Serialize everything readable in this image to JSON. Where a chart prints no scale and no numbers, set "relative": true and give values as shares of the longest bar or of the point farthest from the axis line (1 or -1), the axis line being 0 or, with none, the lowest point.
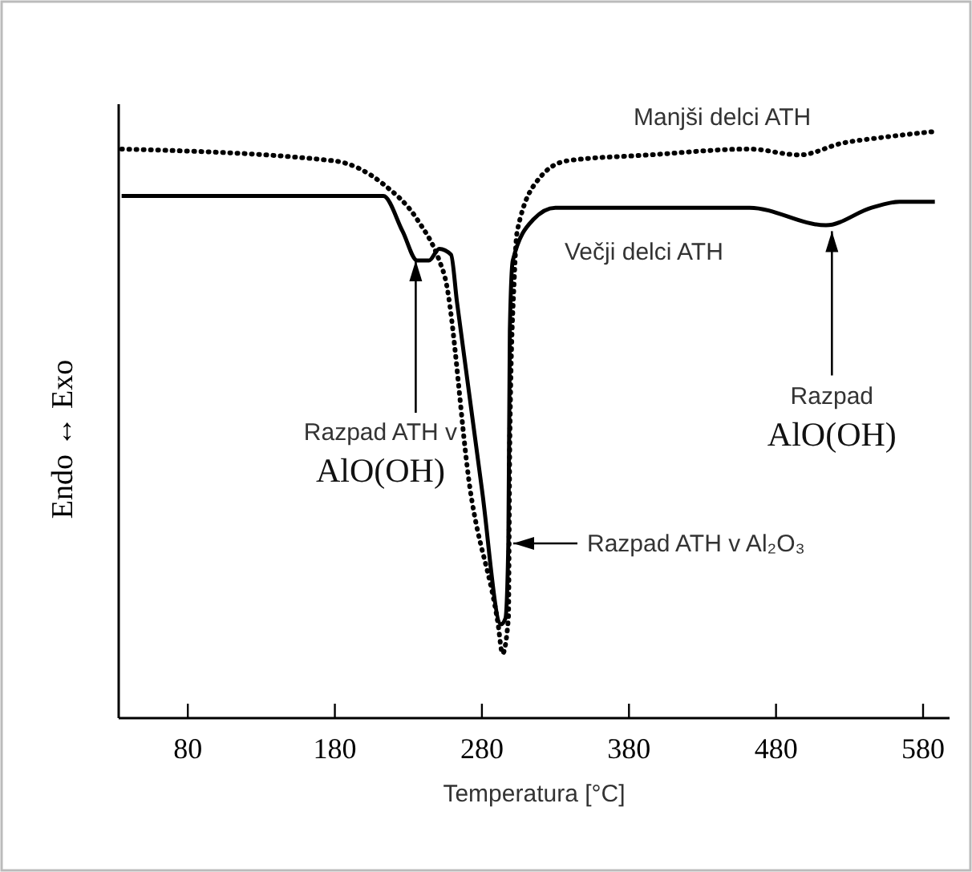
{
  "chart_data": {
    "type": "line",
    "relative": true,
    "xlabel": "Temperatura [°C]",
    "ylabel": "Endo ↔ Exo",
    "xlim": [
      33,
      598
    ],
    "xticks": [
      80,
      180,
      280,
      380,
      480,
      580
    ],
    "grid": false,
    "series": [
      {
        "name": "Manjši delci ATH",
        "color": "#000000",
        "line_style": "dotted",
        "x": [
          35,
          179,
          213,
          236,
          251,
          255,
          272,
          291,
          294,
          298,
          299,
          302,
          304,
          319,
          338,
          394,
          462,
          496,
          525,
          553,
          588
        ],
        "values": [
          0.97,
          0.95,
          0.91,
          0.85,
          0.78,
          0.75,
          0.39,
          0.16,
          0.11,
          0.17,
          0.48,
          0.75,
          0.83,
          0.92,
          0.95,
          0.96,
          0.97,
          0.96,
          0.98,
          0.99,
          1
        ]
      },
      {
        "name": "Večji delci ATH",
        "color": "#000000",
        "line_style": "solid",
        "x": [
          35,
          213,
          226,
          236,
          244,
          251,
          259,
          263,
          280,
          293,
          296,
          298,
          299,
          301,
          315,
          330,
          462,
          514,
          545,
          564,
          588
        ],
        "values": [
          0.89,
          0.89,
          0.83,
          0.78,
          0.78,
          0.8,
          0.79,
          0.71,
          0.39,
          0.16,
          0.17,
          0.3,
          0.66,
          0.78,
          0.85,
          0.87,
          0.87,
          0.84,
          0.87,
          0.88,
          0.88
        ]
      }
    ],
    "annotations": [
      {
        "text": "Razpad ATH v\nAlO(OH)",
        "x": 235,
        "y": 0.78
      },
      "Razpad ATH v Al₂O₃",
      {
        "text": "Razpad\nAlO(OH)",
        "x": 518,
        "y": 0.83
      }
    ]
  }
}
